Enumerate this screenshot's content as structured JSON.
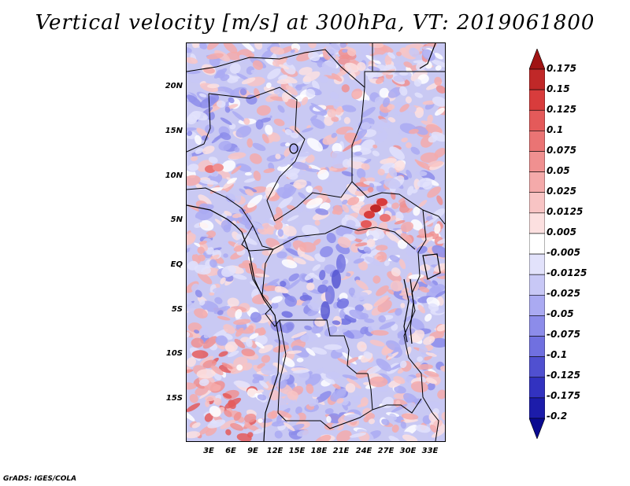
{
  "title": "Vertical velocity [m/s] at 300hPa, VT: 2019061800",
  "map": {
    "variable": "Vertical velocity",
    "units": "m/s",
    "level": "300hPa",
    "valid_time": "2019061800",
    "lat_labels": [
      "20N",
      "15N",
      "10N",
      "5N",
      "EQ",
      "5S",
      "10S",
      "15S"
    ],
    "lon_labels": [
      "3E",
      "6E",
      "9E",
      "12E",
      "15E",
      "18E",
      "21E",
      "24E",
      "27E",
      "30E",
      "33E"
    ],
    "lat_values": [
      20,
      15,
      10,
      5,
      0,
      -5,
      -10,
      -15
    ],
    "lon_values": [
      3,
      6,
      9,
      12,
      15,
      18,
      21,
      24,
      27,
      30,
      33
    ],
    "lat_range": [
      -20,
      24.5
    ],
    "lon_range": [
      0,
      35
    ]
  },
  "colorbar": {
    "labels": [
      "0.175",
      "0.15",
      "0.125",
      "0.1",
      "0.075",
      "0.05",
      "0.025",
      "0.0125",
      "0.005",
      "-0.005",
      "-0.0125",
      "-0.025",
      "-0.05",
      "-0.075",
      "-0.1",
      "-0.125",
      "-0.175",
      "-0.2"
    ],
    "colors": [
      "#a01414",
      "#c02828",
      "#d83c3c",
      "#e45a5a",
      "#ea7474",
      "#f09090",
      "#f4aaaa",
      "#f8c4c4",
      "#fce0e0",
      "#ffffff",
      "#e2e2fb",
      "#c8c8f6",
      "#aaaaf2",
      "#8c8cea",
      "#7070e0",
      "#5050d0",
      "#3232c0",
      "#1c1caa",
      "#0a0a90"
    ]
  },
  "credit": "GrADS: IGES/COLA"
}
